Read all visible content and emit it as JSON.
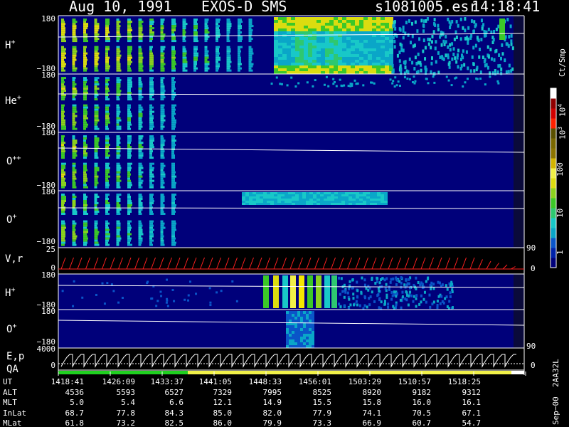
{
  "header": {
    "date": "Aug 10, 1991",
    "instrument": "EXOS-D SMS",
    "file": "s1081005.esr",
    "time": "14:18:41"
  },
  "panels": [
    {
      "key": "h_plus",
      "label": "H",
      "sup": "+",
      "tick_top": "180",
      "tick_bottom": "−180"
    },
    {
      "key": "he_plus",
      "label": "He",
      "sup": "+",
      "tick_top": "180",
      "tick_bottom": "−180"
    },
    {
      "key": "o_plusplus",
      "label": "O",
      "sup": "++",
      "tick_top": "180",
      "tick_bottom": "−180"
    },
    {
      "key": "o_plus",
      "label": "O",
      "sup": "+",
      "tick_top": "180",
      "tick_bottom": "−180"
    },
    {
      "key": "vr",
      "label": "V,r",
      "sup": "",
      "tick_top": "25",
      "tick_bottom": "0",
      "right_top": "90",
      "right_bottom": "0"
    },
    {
      "key": "h_plus_2",
      "label": "H",
      "sup": "+",
      "tick_top": "180",
      "tick_bottom": "−180"
    },
    {
      "key": "o_plus_2",
      "label": "O",
      "sup": "+",
      "tick_top": "180",
      "tick_bottom": "−180",
      "right_bottom": "90"
    },
    {
      "key": "ep",
      "label": "E,p",
      "sup": "",
      "tick_top": "4000",
      "tick_bottom": "0",
      "right_bottom": "0"
    }
  ],
  "qa_label": "QA",
  "colorbar": {
    "unit": "Ct/Smp",
    "labels": [
      {
        "text": "10",
        "sup": "4"
      },
      {
        "text": "10",
        "sup": "3"
      },
      {
        "text": "100",
        "sup": ""
      },
      {
        "text": "10",
        "sup": ""
      },
      {
        "text": "1",
        "sup": ""
      }
    ],
    "colors": [
      "#00007a",
      "#0022aa",
      "#0a55c8",
      "#0aa6c8",
      "#18c8c8",
      "#2ec870",
      "#3cc828",
      "#8cd21e",
      "#dcdc10",
      "#f0f048",
      "#d2b400",
      "#8c7400",
      "#7a6800",
      "#5a5000",
      "#ff2000",
      "#d00000",
      "#900000",
      "#ffffff"
    ]
  },
  "side_text": "Sep−00  2AA32L",
  "table": {
    "rows": [
      {
        "label": "UT",
        "values": [
          "1418:41",
          "1426:09",
          "1433:37",
          "1441:05",
          "1448:33",
          "1456:01",
          "1503:29",
          "1510:57",
          "1518:25"
        ]
      },
      {
        "label": "ALT",
        "values": [
          "4536",
          "5593",
          "6527",
          "7329",
          "7995",
          "8525",
          "8920",
          "9182",
          "9312"
        ]
      },
      {
        "label": "MLT",
        "values": [
          "5.0",
          "5.4",
          "6.6",
          "12.1",
          "14.9",
          "15.5",
          "15.8",
          "16.0",
          "16.1"
        ]
      },
      {
        "label": "InLat",
        "values": [
          "68.7",
          "77.8",
          "84.3",
          "85.0",
          "82.0",
          "77.9",
          "74.1",
          "70.5",
          "67.1"
        ]
      },
      {
        "label": "MLat",
        "values": [
          "61.8",
          "73.2",
          "82.5",
          "86.0",
          "79.9",
          "73.3",
          "66.9",
          "60.7",
          "54.7"
        ]
      }
    ]
  },
  "chart_data": [
    {
      "type": "heatmap",
      "title": "Aug 10, 1991   EXOS-D SMS",
      "xlabel": "UT",
      "x_ticks": [
        "1418:41",
        "1426:09",
        "1433:37",
        "1441:05",
        "1448:33",
        "1456:01",
        "1503:29",
        "1510:57",
        "1518:25"
      ],
      "colorbar_unit": "Ct/Smp",
      "colorbar_range": [
        1,
        10000
      ],
      "series": [
        {
          "name": "H+",
          "ylim": [
            -180,
            180
          ]
        },
        {
          "name": "He+",
          "ylim": [
            -180,
            180
          ]
        },
        {
          "name": "O++",
          "ylim": [
            -180,
            180
          ]
        },
        {
          "name": "O+",
          "ylim": [
            -180,
            180
          ]
        },
        {
          "name": "H+",
          "ylim": [
            -180,
            180
          ]
        },
        {
          "name": "O+",
          "ylim": [
            -180,
            180
          ]
        }
      ]
    },
    {
      "type": "line",
      "name": "V,r",
      "ylim": [
        0,
        25
      ],
      "right_ylim": [
        0,
        90
      ]
    },
    {
      "type": "line",
      "name": "E,p",
      "ylim": [
        0,
        4000
      ],
      "right_ylim": [
        0,
        90
      ]
    }
  ]
}
